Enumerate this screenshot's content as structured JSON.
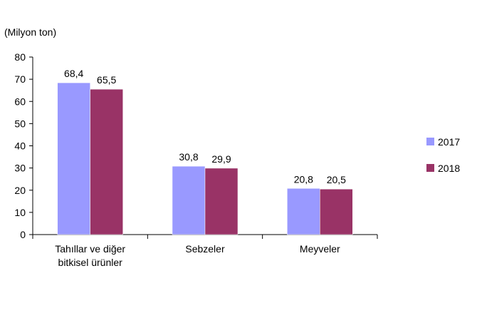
{
  "chart_data": {
    "type": "bar",
    "unit_label": "(Milyon ton)",
    "categories": [
      [
        "Tahıllar ve diğer",
        "bitkisel ürünler"
      ],
      [
        "Sebzeler"
      ],
      [
        "Meyveler"
      ]
    ],
    "series": [
      {
        "name": "2017",
        "values": [
          68.4,
          30.8,
          20.8
        ],
        "labels": [
          "68,4",
          "30,8",
          "20,8"
        ],
        "color": "#9999ff"
      },
      {
        "name": "2018",
        "values": [
          65.5,
          29.9,
          20.5
        ],
        "labels": [
          "65,5",
          "29,9",
          "20,5"
        ],
        "color": "#993366"
      }
    ],
    "ylim": [
      0,
      80
    ],
    "yticks": [
      0,
      10,
      20,
      30,
      40,
      50,
      60,
      70,
      80
    ],
    "grid": false,
    "legend_position": "right"
  }
}
